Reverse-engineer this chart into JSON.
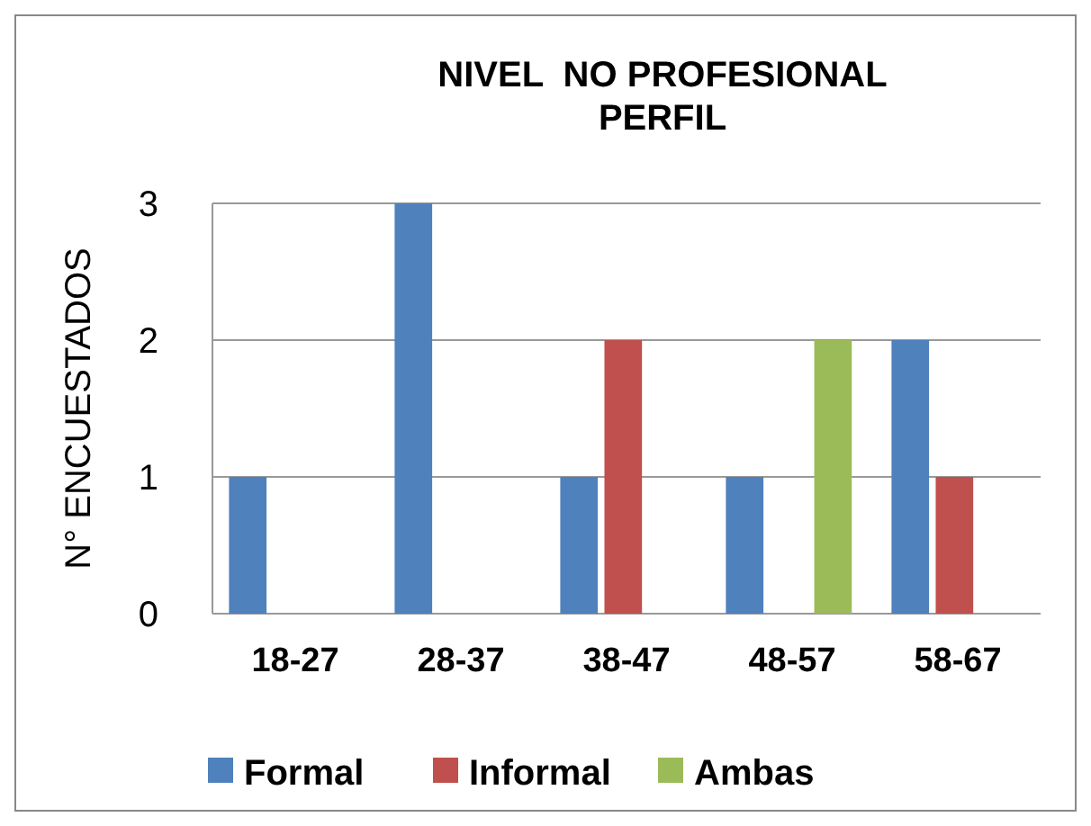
{
  "chart_data": {
    "type": "bar",
    "title": "NIVEL  NO PROFESIONAL\nPERFIL",
    "ylabel": "N° ENCUESTADOS",
    "categories": [
      "18-27",
      "28-37",
      "38-47",
      "48-57",
      "58-67"
    ],
    "series": [
      {
        "name": "Formal",
        "color": "#4f81bd",
        "values": [
          1,
          3,
          1,
          1,
          2
        ]
      },
      {
        "name": "Informal",
        "color": "#c0504d",
        "values": [
          0,
          0,
          2,
          0,
          1
        ]
      },
      {
        "name": "Ambas",
        "color": "#9bbb59",
        "values": [
          0,
          0,
          0,
          2,
          0
        ]
      }
    ],
    "ylim": [
      0,
      3
    ],
    "yticks": [
      0,
      1,
      2,
      3
    ],
    "grid": "y",
    "legend": "bottom"
  }
}
